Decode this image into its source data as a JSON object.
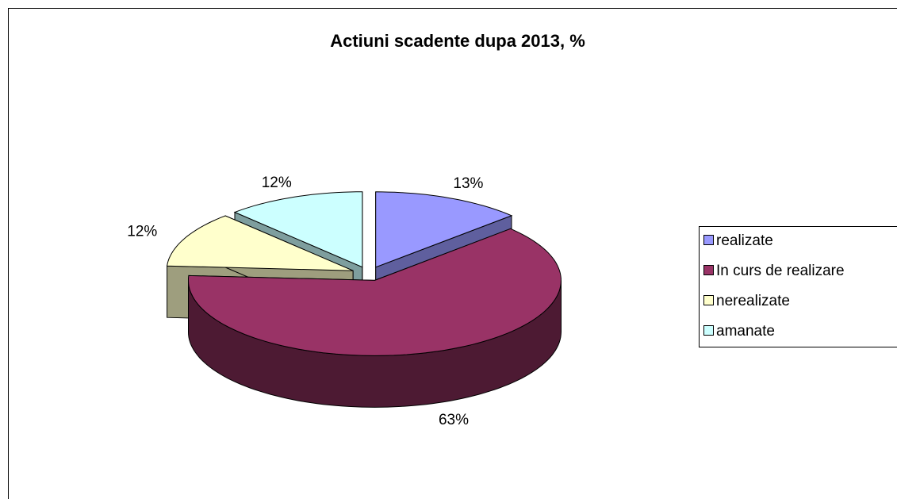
{
  "chart_data": {
    "type": "pie",
    "title": "Actiuni scadente dupa 2013, %",
    "categories": [
      "realizate",
      "In curs de realizare",
      "nerealizate",
      "amanate"
    ],
    "values": [
      13,
      63,
      12,
      12
    ],
    "value_labels": [
      "13%",
      "63%",
      "12%",
      "12%"
    ],
    "colors": [
      "#9999ff",
      "#993366",
      "#ffffcc",
      "#ccffff"
    ],
    "legend": "right"
  }
}
